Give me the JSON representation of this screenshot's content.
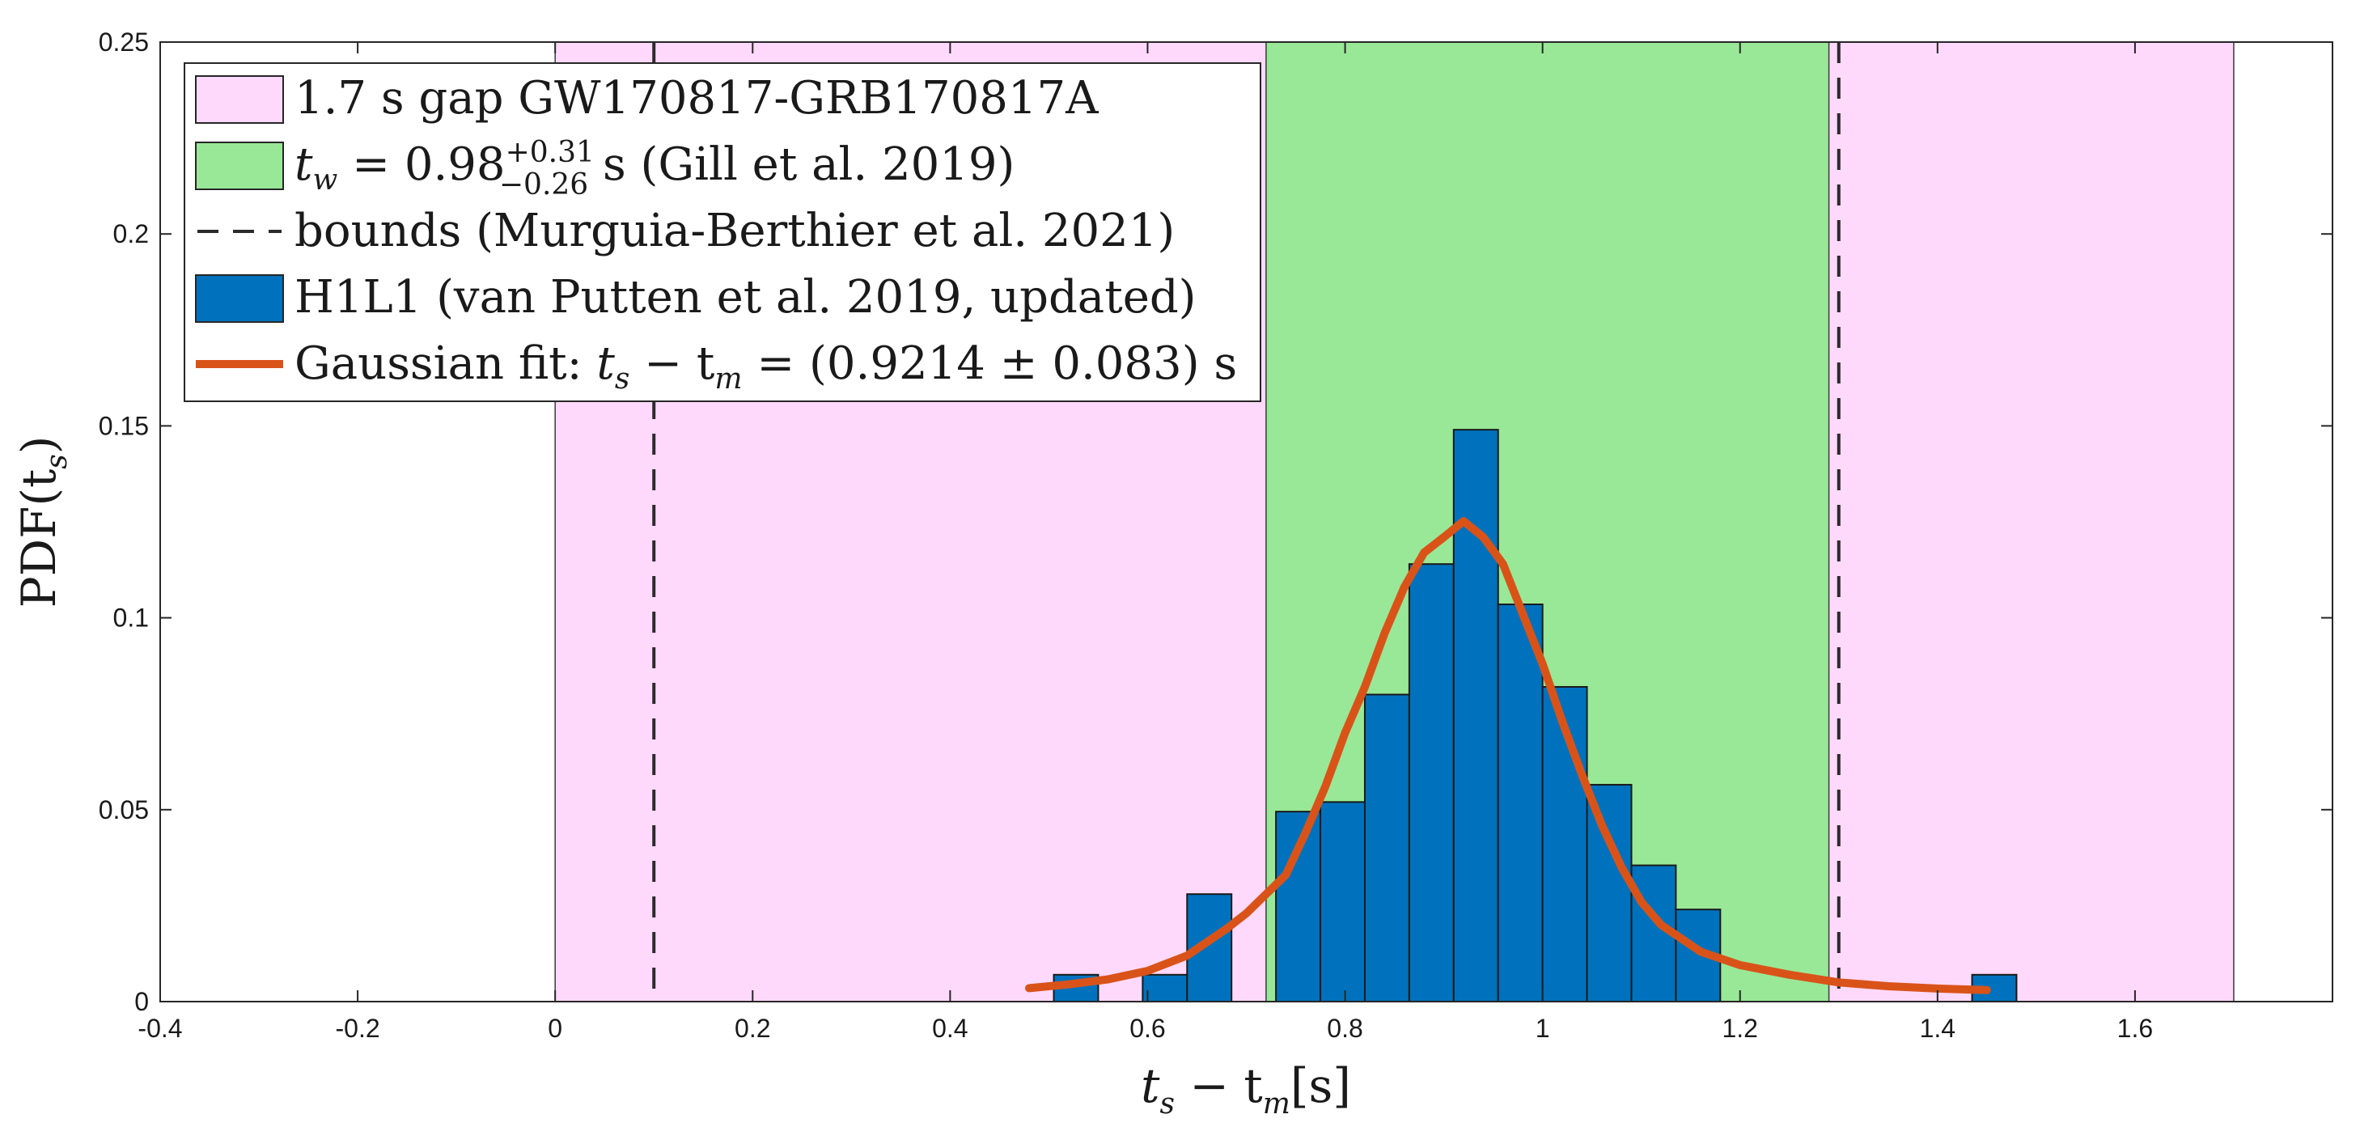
{
  "chart_data": {
    "type": "bar",
    "title": "",
    "xlabel": {
      "main": "t",
      "sub": "s",
      "mid": " − t",
      "sub2": "m",
      "unit": "[s]"
    },
    "ylabel": {
      "main": "PDF(t",
      "sub": "s",
      "end": ")"
    },
    "xlim": [
      -0.4,
      1.8
    ],
    "ylim": [
      0,
      0.25
    ],
    "x_ticks": [
      -0.4,
      -0.2,
      0,
      0.2,
      0.4,
      0.6,
      0.8,
      1,
      1.2,
      1.4,
      1.6
    ],
    "x_tick_labels": [
      "-0.4",
      "-0.2",
      "0",
      "0.2",
      "0.4",
      "0.6",
      "0.8",
      "1",
      "1.2",
      "1.4",
      "1.6"
    ],
    "y_ticks": [
      0,
      0.05,
      0.1,
      0.15,
      0.2,
      0.25
    ],
    "y_tick_labels": [
      "0",
      "0.05",
      "0.1",
      "0.15",
      "0.2",
      "0.25"
    ],
    "grid": false,
    "legend_position": "top-left",
    "shaded_regions": [
      {
        "legend": "1.7 s gap GW170817-GRB170817A",
        "x": [
          0,
          1.7
        ],
        "color": "#ffd9fb"
      },
      {
        "legend": "t_w = 0.98 +0.31 −0.26 s (Gill et al. 2019)",
        "x": [
          0.72,
          1.29
        ],
        "color": "#99e897"
      }
    ],
    "vertical_lines": {
      "legend": "bounds (Murguia-Berthier et al. 2021)",
      "x": [
        0.1,
        1.3
      ],
      "color": "#2b2b2b",
      "style": "dashed"
    },
    "histogram": {
      "legend": "H1L1 (van Putten et al. 2019, updated)",
      "color": "#0072bd",
      "bin_width": 0.045,
      "bins": [
        {
          "x0": 0.505,
          "value": 0.007
        },
        {
          "x0": 0.595,
          "value": 0.007
        },
        {
          "x0": 0.64,
          "value": 0.028
        },
        {
          "x0": 0.73,
          "value": 0.0495
        },
        {
          "x0": 0.775,
          "value": 0.052
        },
        {
          "x0": 0.82,
          "value": 0.08
        },
        {
          "x0": 0.865,
          "value": 0.114
        },
        {
          "x0": 0.91,
          "value": 0.149
        },
        {
          "x0": 0.955,
          "value": 0.1035
        },
        {
          "x0": 1.0,
          "value": 0.082
        },
        {
          "x0": 1.045,
          "value": 0.0565
        },
        {
          "x0": 1.09,
          "value": 0.0355
        },
        {
          "x0": 1.135,
          "value": 0.024
        },
        {
          "x0": 1.435,
          "value": 0.007
        }
      ]
    },
    "fit_curve": {
      "legend": "Gaussian fit: t_s − t_m = (0.9214 ± 0.083) s",
      "color": "#d95319",
      "x": [
        0.48,
        0.52,
        0.56,
        0.6,
        0.64,
        0.68,
        0.7,
        0.74,
        0.76,
        0.78,
        0.8,
        0.82,
        0.84,
        0.86,
        0.88,
        0.9,
        0.92,
        0.94,
        0.96,
        0.98,
        1.0,
        1.02,
        1.04,
        1.06,
        1.08,
        1.1,
        1.12,
        1.16,
        1.2,
        1.25,
        1.3,
        1.35,
        1.4,
        1.45
      ],
      "y": [
        0.0035,
        0.0045,
        0.0058,
        0.008,
        0.012,
        0.019,
        0.023,
        0.033,
        0.044,
        0.056,
        0.07,
        0.082,
        0.096,
        0.108,
        0.117,
        0.121,
        0.1252,
        0.121,
        0.114,
        0.101,
        0.088,
        0.073,
        0.059,
        0.046,
        0.035,
        0.026,
        0.02,
        0.013,
        0.0095,
        0.007,
        0.005,
        0.004,
        0.0034,
        0.003
      ]
    },
    "legend": [
      {
        "kind": "patch",
        "color": "#ffd9fb",
        "text": "1.7 s gap GW170817-GRB170817A"
      },
      {
        "kind": "patch",
        "color": "#99e897",
        "pre": "t",
        "pre_sub": "w",
        "mid": " = 0.98",
        "sup": "+0.31",
        "sub": "−0.26",
        "post": " s (Gill et al. 2019)"
      },
      {
        "kind": "dash",
        "color": "#2b2b2b",
        "text": "bounds (Murguia-Berthier et al. 2021)"
      },
      {
        "kind": "patch",
        "color": "#0072bd",
        "text": "H1L1 (van Putten et al. 2019, updated)"
      },
      {
        "kind": "line",
        "color": "#d95319",
        "pre": "Gaussian fit: ",
        "t1": "t",
        "t1_sub": "s",
        "mid": " − t",
        "t2_sub": "m",
        "post": " = (0.9214 ± 0.083) s"
      }
    ]
  }
}
